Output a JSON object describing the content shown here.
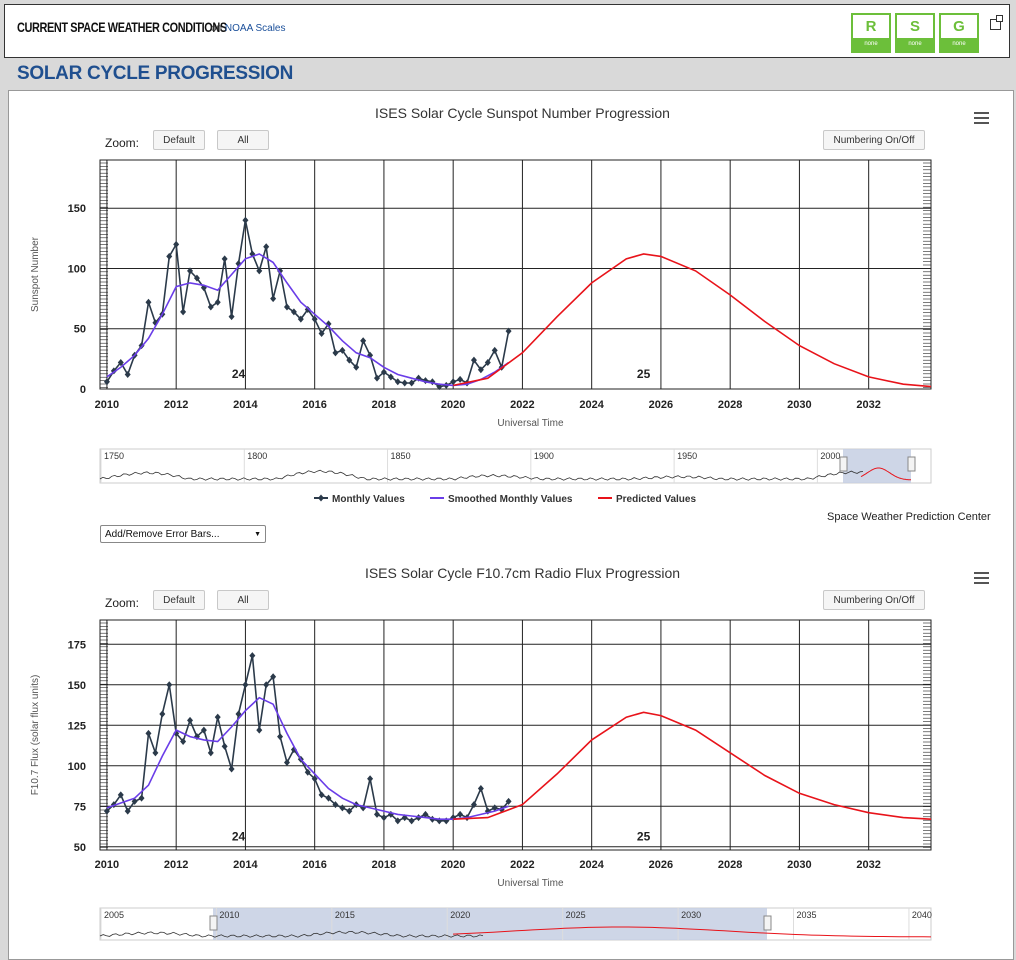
{
  "header": {
    "title": "CURRENT SPACE WEATHER CONDITIONS",
    "on_text": "on",
    "link_text": "NOAA Scales",
    "scales": [
      {
        "letter": "R",
        "level": "none"
      },
      {
        "letter": "S",
        "level": "none"
      },
      {
        "letter": "G",
        "level": "none"
      }
    ]
  },
  "section_title": "SOLAR CYCLE PROGRESSION",
  "controls": {
    "zoom_label": "Zoom:",
    "default_label": "Default",
    "all_label": "All",
    "numbering_label": "Numbering On/Off",
    "error_bars_label": "Add/Remove Error Bars...",
    "credit": "Space Weather Prediction Center"
  },
  "colors": {
    "monthly": "#2b3a4a",
    "smoothed": "#6a3de8",
    "predicted": "#e8131a",
    "navigator_band": "#c5cfe3"
  },
  "chart_data": [
    {
      "type": "line",
      "title": "ISES Solar Cycle Sunspot Number Progression",
      "xlabel": "Universal Time",
      "ylabel": "Sunspot Number",
      "xlim": [
        2009.8,
        2033.8
      ],
      "ylim": [
        0,
        190
      ],
      "xticks": [
        "2010",
        "2012",
        "2014",
        "2016",
        "2018",
        "2020",
        "2022",
        "2024",
        "2026",
        "2028",
        "2030",
        "2032"
      ],
      "yticks": [
        "0",
        "50",
        "100",
        "150"
      ],
      "cycle_labels": [
        {
          "text": "24",
          "x": 2013.8,
          "y": 9
        },
        {
          "text": "25",
          "x": 2025.5,
          "y": 9
        }
      ],
      "legend": [
        "Monthly Values",
        "Smoothed Monthly Values",
        "Predicted Values"
      ],
      "series": [
        {
          "name": "Monthly Values",
          "x": [
            2010.0,
            2010.2,
            2010.4,
            2010.6,
            2010.8,
            2011.0,
            2011.2,
            2011.4,
            2011.6,
            2011.8,
            2012.0,
            2012.2,
            2012.4,
            2012.6,
            2012.8,
            2013.0,
            2013.2,
            2013.4,
            2013.6,
            2013.8,
            2014.0,
            2014.2,
            2014.4,
            2014.6,
            2014.8,
            2015.0,
            2015.2,
            2015.4,
            2015.6,
            2015.8,
            2016.0,
            2016.2,
            2016.4,
            2016.6,
            2016.8,
            2017.0,
            2017.2,
            2017.4,
            2017.6,
            2017.8,
            2018.0,
            2018.2,
            2018.4,
            2018.6,
            2018.8,
            2019.0,
            2019.2,
            2019.4,
            2019.6,
            2019.8,
            2020.0,
            2020.2,
            2020.4,
            2020.6,
            2020.8,
            2021.0,
            2021.2,
            2021.4,
            2021.6
          ],
          "values": [
            6,
            15,
            22,
            12,
            28,
            36,
            72,
            55,
            62,
            110,
            120,
            64,
            98,
            92,
            84,
            68,
            72,
            108,
            60,
            104,
            140,
            112,
            98,
            118,
            75,
            98,
            68,
            64,
            58,
            66,
            58,
            46,
            54,
            30,
            32,
            24,
            18,
            40,
            28,
            9,
            14,
            10,
            6,
            5,
            5,
            9,
            7,
            6,
            2,
            3,
            6,
            8,
            5,
            24,
            16,
            22,
            32,
            18,
            48
          ]
        },
        {
          "name": "Smoothed Monthly Values",
          "x": [
            2010.0,
            2010.4,
            2010.8,
            2011.2,
            2011.6,
            2012.0,
            2012.4,
            2012.8,
            2013.2,
            2013.6,
            2014.0,
            2014.4,
            2014.8,
            2015.2,
            2015.6,
            2016.0,
            2016.4,
            2016.8,
            2017.2,
            2017.6,
            2018.0,
            2018.4,
            2018.8,
            2019.2,
            2019.6,
            2020.0,
            2020.4,
            2020.8,
            2021.2,
            2021.6
          ],
          "values": [
            10,
            18,
            28,
            42,
            62,
            85,
            88,
            86,
            82,
            95,
            108,
            112,
            105,
            88,
            72,
            62,
            52,
            40,
            30,
            26,
            18,
            12,
            9,
            6,
            4,
            3,
            4,
            8,
            14,
            22
          ]
        },
        {
          "name": "Predicted Values",
          "x": [
            2020.0,
            2021.0,
            2022.0,
            2023.0,
            2024.0,
            2025.0,
            2025.5,
            2026.0,
            2027.0,
            2028.0,
            2029.0,
            2030.0,
            2031.0,
            2032.0,
            2033.0,
            2033.8
          ],
          "values": [
            3,
            9,
            30,
            60,
            88,
            108,
            112,
            110,
            98,
            78,
            56,
            36,
            21,
            10,
            4,
            2
          ]
        }
      ],
      "navigator": {
        "labels": [
          "1750",
          "1800",
          "1850",
          "1900",
          "1950",
          "2000"
        ]
      }
    },
    {
      "type": "line",
      "title": "ISES Solar Cycle F10.7cm Radio Flux Progression",
      "xlabel": "Universal Time",
      "ylabel": "F10.7 Flux (solar flux units)",
      "xlim": [
        2009.8,
        2033.8
      ],
      "ylim": [
        48,
        190
      ],
      "xticks": [
        "2010",
        "2012",
        "2014",
        "2016",
        "2018",
        "2020",
        "2022",
        "2024",
        "2026",
        "2028",
        "2030",
        "2032"
      ],
      "yticks": [
        "50",
        "75",
        "100",
        "125",
        "150",
        "175"
      ],
      "cycle_labels": [
        {
          "text": "24",
          "x": 2013.8,
          "y": 54
        },
        {
          "text": "25",
          "x": 2025.5,
          "y": 54
        }
      ],
      "series": [
        {
          "name": "Monthly Values",
          "x": [
            2010.0,
            2010.2,
            2010.4,
            2010.6,
            2010.8,
            2011.0,
            2011.2,
            2011.4,
            2011.6,
            2011.8,
            2012.0,
            2012.2,
            2012.4,
            2012.6,
            2012.8,
            2013.0,
            2013.2,
            2013.4,
            2013.6,
            2013.8,
            2014.0,
            2014.2,
            2014.4,
            2014.6,
            2014.8,
            2015.0,
            2015.2,
            2015.4,
            2015.6,
            2015.8,
            2016.0,
            2016.2,
            2016.4,
            2016.6,
            2016.8,
            2017.0,
            2017.2,
            2017.4,
            2017.6,
            2017.8,
            2018.0,
            2018.2,
            2018.4,
            2018.6,
            2018.8,
            2019.0,
            2019.2,
            2019.4,
            2019.6,
            2019.8,
            2020.0,
            2020.2,
            2020.4,
            2020.6,
            2020.8,
            2021.0,
            2021.2,
            2021.4,
            2021.6
          ],
          "values": [
            72,
            76,
            82,
            72,
            78,
            80,
            120,
            108,
            132,
            150,
            120,
            115,
            128,
            118,
            122,
            108,
            130,
            112,
            98,
            132,
            150,
            168,
            122,
            150,
            155,
            118,
            102,
            110,
            104,
            96,
            92,
            82,
            80,
            76,
            74,
            72,
            76,
            74,
            92,
            70,
            68,
            70,
            66,
            68,
            66,
            68,
            70,
            67,
            66,
            66,
            68,
            70,
            68,
            76,
            86,
            72,
            74,
            73,
            78
          ]
        },
        {
          "name": "Smoothed Monthly Values",
          "x": [
            2010.0,
            2010.4,
            2010.8,
            2011.2,
            2011.6,
            2012.0,
            2012.4,
            2012.8,
            2013.2,
            2013.6,
            2014.0,
            2014.4,
            2014.8,
            2015.2,
            2015.6,
            2016.0,
            2016.4,
            2016.8,
            2017.2,
            2017.6,
            2018.0,
            2018.4,
            2018.8,
            2019.2,
            2019.6,
            2020.0,
            2020.4,
            2020.8,
            2021.2,
            2021.6
          ],
          "values": [
            74,
            77,
            80,
            88,
            106,
            122,
            118,
            116,
            115,
            124,
            134,
            142,
            138,
            120,
            104,
            95,
            86,
            80,
            76,
            74,
            72,
            70,
            69,
            68,
            67,
            67,
            68,
            70,
            72,
            75
          ]
        },
        {
          "name": "Predicted Values",
          "x": [
            2020.0,
            2021.0,
            2022.0,
            2023.0,
            2024.0,
            2025.0,
            2025.5,
            2026.0,
            2027.0,
            2028.0,
            2029.0,
            2030.0,
            2031.0,
            2032.0,
            2033.0,
            2033.8
          ],
          "values": [
            67,
            68,
            76,
            95,
            116,
            130,
            133,
            131,
            122,
            108,
            94,
            83,
            76,
            71,
            68,
            67
          ]
        }
      ],
      "navigator": {
        "labels": [
          "2005",
          "2010",
          "2015",
          "2020",
          "2025",
          "2030",
          "2035",
          "2040"
        ]
      }
    }
  ]
}
